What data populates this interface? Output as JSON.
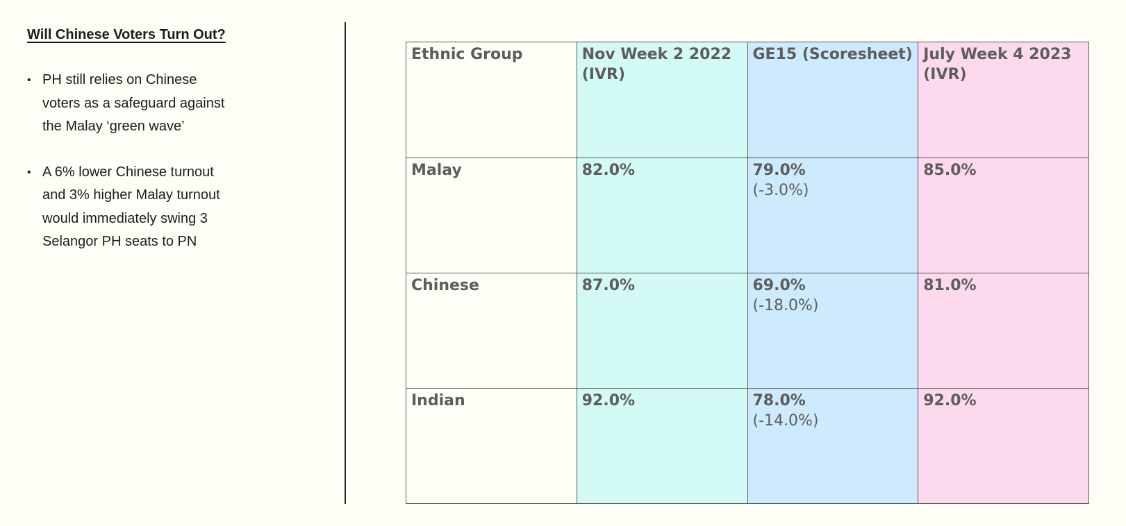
{
  "left": {
    "heading": "Will Chinese Voters Turn Out?",
    "bullets": [
      "PH still relies on Chinese voters as a safeguard against the Malay ‘green wave’",
      "A 6% lower Chinese turnout and 3% higher Malay turnout would immediately swing 3 Selangor PH seats to PN"
    ]
  },
  "table": {
    "headers": [
      "Ethnic Group",
      "Nov Week 2 2022 (IVR)",
      "GE15 (Scoresheet)",
      "July Week 4 2023 (IVR)"
    ],
    "rows": [
      {
        "group": "Malay",
        "nov": "82.0%",
        "ge15": "79.0%",
        "ge15_diff": "(-3.0%)",
        "july": "85.0%"
      },
      {
        "group": "Chinese",
        "nov": "87.0%",
        "ge15": "69.0%",
        "ge15_diff": "(-18.0%)",
        "july": "81.0%"
      },
      {
        "group": "Indian",
        "nov": "92.0%",
        "ge15": "78.0%",
        "ge15_diff": "(-14.0%)",
        "july": "92.0%"
      }
    ]
  },
  "colors": {
    "nov_column": "#d3faf5",
    "ge15_column": "#cdebfc",
    "july_column": "#fdd9ee",
    "background": "#fefdf6"
  }
}
